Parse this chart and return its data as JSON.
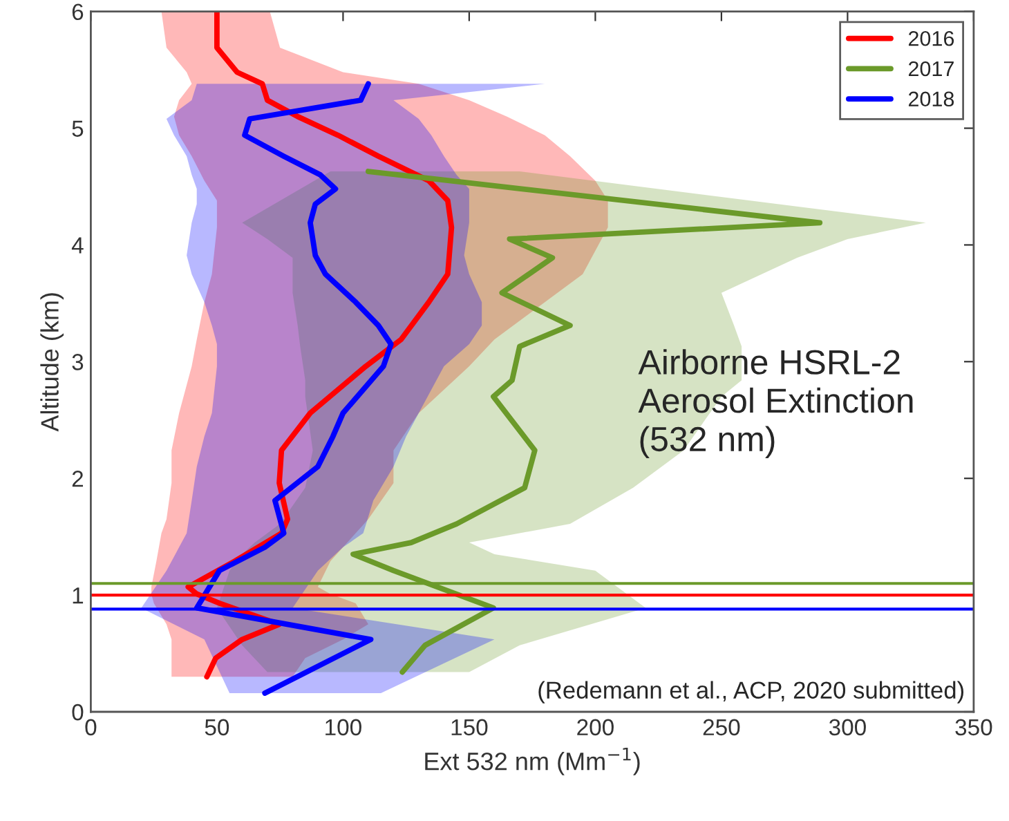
{
  "chart_data": {
    "type": "line",
    "orientation": "horizontal",
    "xlabel": "Ext 532 nm (Mm$^{−1}$)",
    "ylabel": "Altitude (km)",
    "xlim": [
      0,
      350
    ],
    "xticks": [
      0,
      50,
      100,
      150,
      200,
      250,
      300,
      350
    ],
    "ylim": [
      0,
      6
    ],
    "yticks": [
      0,
      1,
      2,
      3,
      4,
      5,
      6
    ],
    "grid": false,
    "legend": "top right",
    "line_style": "solid",
    "marker": "none",
    "series": [
      {
        "name": "2016",
        "color": "#ff0000",
        "x": [
          6.0,
          5.69,
          5.48,
          5.38,
          5.24,
          5.1,
          4.94,
          4.76,
          4.55,
          4.38,
          4.15,
          3.75,
          3.51,
          3.19,
          2.96,
          2.56,
          2.24,
          1.96,
          1.65,
          1.53,
          1.29,
          1.07,
          1.01,
          0.93,
          0.75,
          0.62,
          0.46,
          0.3
        ],
        "values": [
          50,
          50,
          58,
          68,
          70,
          82,
          98,
          114,
          134,
          141.5,
          143,
          141.5,
          134,
          123,
          109,
          87,
          75.6,
          74.7,
          78,
          75.6,
          57,
          38.6,
          42,
          51,
          74.7,
          60,
          49.5,
          46
        ],
        "lower": [
          28,
          30,
          38,
          40,
          35,
          33,
          35,
          40,
          45,
          50,
          50,
          48,
          45,
          42,
          40,
          35,
          32,
          32,
          30,
          28,
          26,
          24,
          24,
          25,
          30,
          32,
          32,
          32
        ],
        "upper": [
          71,
          75,
          100,
          130,
          150,
          165,
          180,
          190,
          200,
          205,
          205,
          195,
          180,
          160,
          150,
          130,
          120,
          120,
          110,
          105,
          95,
          90,
          95,
          105,
          110,
          100,
          85,
          80
        ]
      },
      {
        "name": "2017",
        "color": "#6b9a2a",
        "x": [
          4.63,
          4.19,
          4.05,
          3.89,
          3.59,
          3.31,
          3.13,
          2.84,
          2.7,
          2.24,
          1.92,
          1.61,
          1.45,
          1.35,
          1.21,
          0.89,
          0.57,
          0.34
        ],
        "values": [
          110,
          289,
          166,
          183,
          163,
          190,
          170,
          167,
          159.6,
          176,
          172,
          145,
          127,
          104,
          120,
          159.6,
          132.5,
          123.5
        ],
        "lower": [
          95,
          60,
          70,
          80,
          80,
          82,
          83,
          85,
          85,
          88,
          85,
          75,
          65,
          60,
          55,
          50,
          60,
          70
        ],
        "upper": [
          170,
          331,
          300,
          280,
          250,
          255,
          258,
          258,
          250,
          235,
          215,
          190,
          150,
          160,
          200,
          220,
          170,
          150
        ]
      },
      {
        "name": "2018",
        "color": "#0000ff",
        "x": [
          5.38,
          5.24,
          5.08,
          4.94,
          4.76,
          4.6,
          4.48,
          4.35,
          4.19,
          3.91,
          3.75,
          3.51,
          3.31,
          3.15,
          2.96,
          2.56,
          2.36,
          2.1,
          1.81,
          1.53,
          1.41,
          1.21,
          0.89,
          0.62,
          0.16
        ],
        "values": [
          110,
          107,
          63,
          61,
          76.5,
          91,
          97,
          89,
          87,
          89,
          93,
          105,
          114,
          119,
          116,
          100,
          96,
          90,
          73,
          76.5,
          69,
          51,
          42,
          111,
          69
        ],
        "lower": [
          42,
          40,
          30,
          33,
          38,
          40,
          42,
          42,
          40,
          38,
          40,
          45,
          48,
          50,
          50,
          48,
          45,
          42,
          40,
          38,
          35,
          30,
          20,
          45,
          55
        ],
        "upper": [
          180,
          120,
          130,
          135,
          140,
          145,
          150,
          150,
          150,
          148,
          150,
          155,
          155,
          150,
          140,
          130,
          125,
          120,
          112,
          108,
          100,
          90,
          80,
          160,
          115
        ]
      }
    ],
    "ref_lines": [
      {
        "axis": "y",
        "value": 1.1,
        "color": "#6b9a2a"
      },
      {
        "axis": "y",
        "value": 1.0,
        "color": "#ff0000"
      },
      {
        "axis": "y",
        "value": 0.88,
        "color": "#0000ff"
      }
    ],
    "annotations": [
      "Airborne HSRL-2\nAerosol Extinction\n(532 nm)",
      "(Redemann et al., ACP, 2020 submitted)"
    ]
  }
}
